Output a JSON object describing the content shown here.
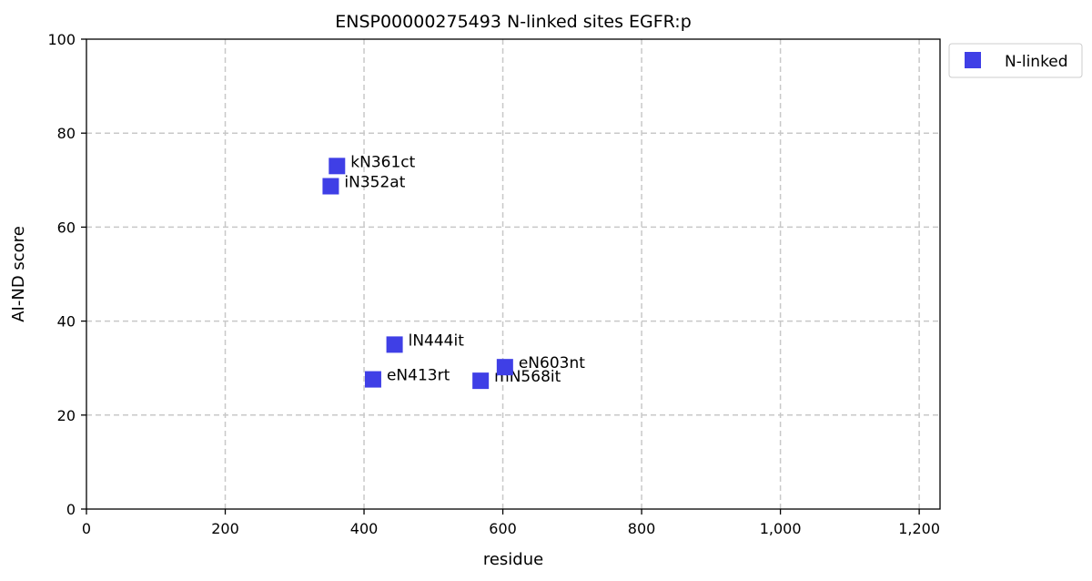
{
  "chart_data": {
    "type": "scatter",
    "title": "ENSP00000275493 N-linked sites EGFR:p",
    "xlabel": "residue",
    "ylabel": "AI-ND score",
    "xlim": [
      0,
      1230
    ],
    "ylim": [
      0,
      100
    ],
    "x_ticks": [
      0,
      200,
      400,
      600,
      800,
      1000,
      1200
    ],
    "x_tick_labels": [
      "0",
      "200",
      "400",
      "600",
      "800",
      "1,000",
      "1,200"
    ],
    "y_ticks": [
      0,
      20,
      40,
      60,
      80,
      100
    ],
    "y_tick_labels": [
      "0",
      "20",
      "40",
      "60",
      "80",
      "100"
    ],
    "grid": true,
    "legend_position": "outside-top-right",
    "series": [
      {
        "name": "N-linked",
        "color": "#3f3fe6",
        "marker": "square",
        "points": [
          {
            "x": 361,
            "y": 73.0,
            "label": "kN361ct"
          },
          {
            "x": 352,
            "y": 68.7,
            "label": "iN352at"
          },
          {
            "x": 444,
            "y": 35.0,
            "label": "lN444it"
          },
          {
            "x": 413,
            "y": 27.6,
            "label": "eN413rt"
          },
          {
            "x": 568,
            "y": 27.3,
            "label": "mN568it"
          },
          {
            "x": 603,
            "y": 30.2,
            "label": "eN603nt"
          }
        ]
      }
    ]
  }
}
